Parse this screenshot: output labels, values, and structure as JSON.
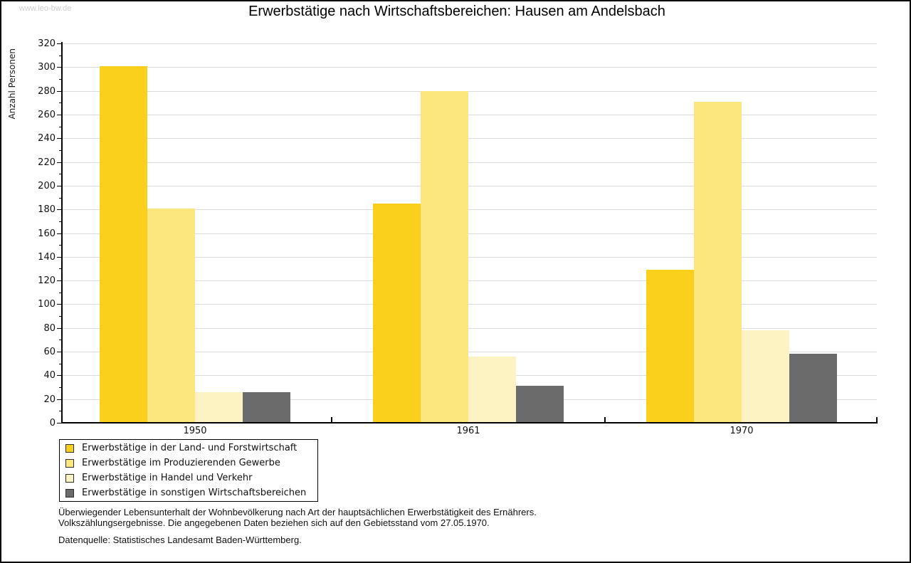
{
  "watermark": "www.leo-bw.de",
  "title": "Erwerbstätige nach Wirtschaftsbereichen: Hausen am Andelsbach",
  "chart_data": {
    "type": "bar",
    "title": "Erwerbstätige nach Wirtschaftsbereichen: Hausen am Andelsbach",
    "xlabel": "",
    "ylabel": "Anzahl Personen",
    "categories": [
      "1950",
      "1961",
      "1970"
    ],
    "series": [
      {
        "name": "Erwerbstätige in der Land- und Forstwirtschaft",
        "color": "#FBD01D",
        "values": [
          301,
          185,
          129
        ]
      },
      {
        "name": "Erwerbstätige im Produzierenden Gewerbe",
        "color": "#FCE77E",
        "values": [
          181,
          280,
          271
        ]
      },
      {
        "name": "Erwerbstätige in Handel und Verkehr",
        "color": "#FDF3C2",
        "values": [
          26,
          56,
          78
        ]
      },
      {
        "name": "Erwerbstätige in sonstigen Wirtschaftsbereichen",
        "color": "#6B6B6B",
        "values": [
          26,
          31,
          58
        ]
      }
    ],
    "ylim": [
      0,
      320
    ],
    "ytick_step": 20,
    "ytick_minor_step": 10,
    "grid": true,
    "legend_position": "bottom-left"
  },
  "footer": {
    "line1": "Überwiegender Lebensunterhalt der Wohnbevölkerung nach Art der hauptsächlichen Erwerbstätigkeit des Ernährers.",
    "line2": "Volkszählungsergebnisse. Die angegebenen Daten beziehen sich auf den Gebietsstand vom 27.05.1970.",
    "source": "Datenquelle: Statistisches Landesamt Baden-Württemberg."
  }
}
